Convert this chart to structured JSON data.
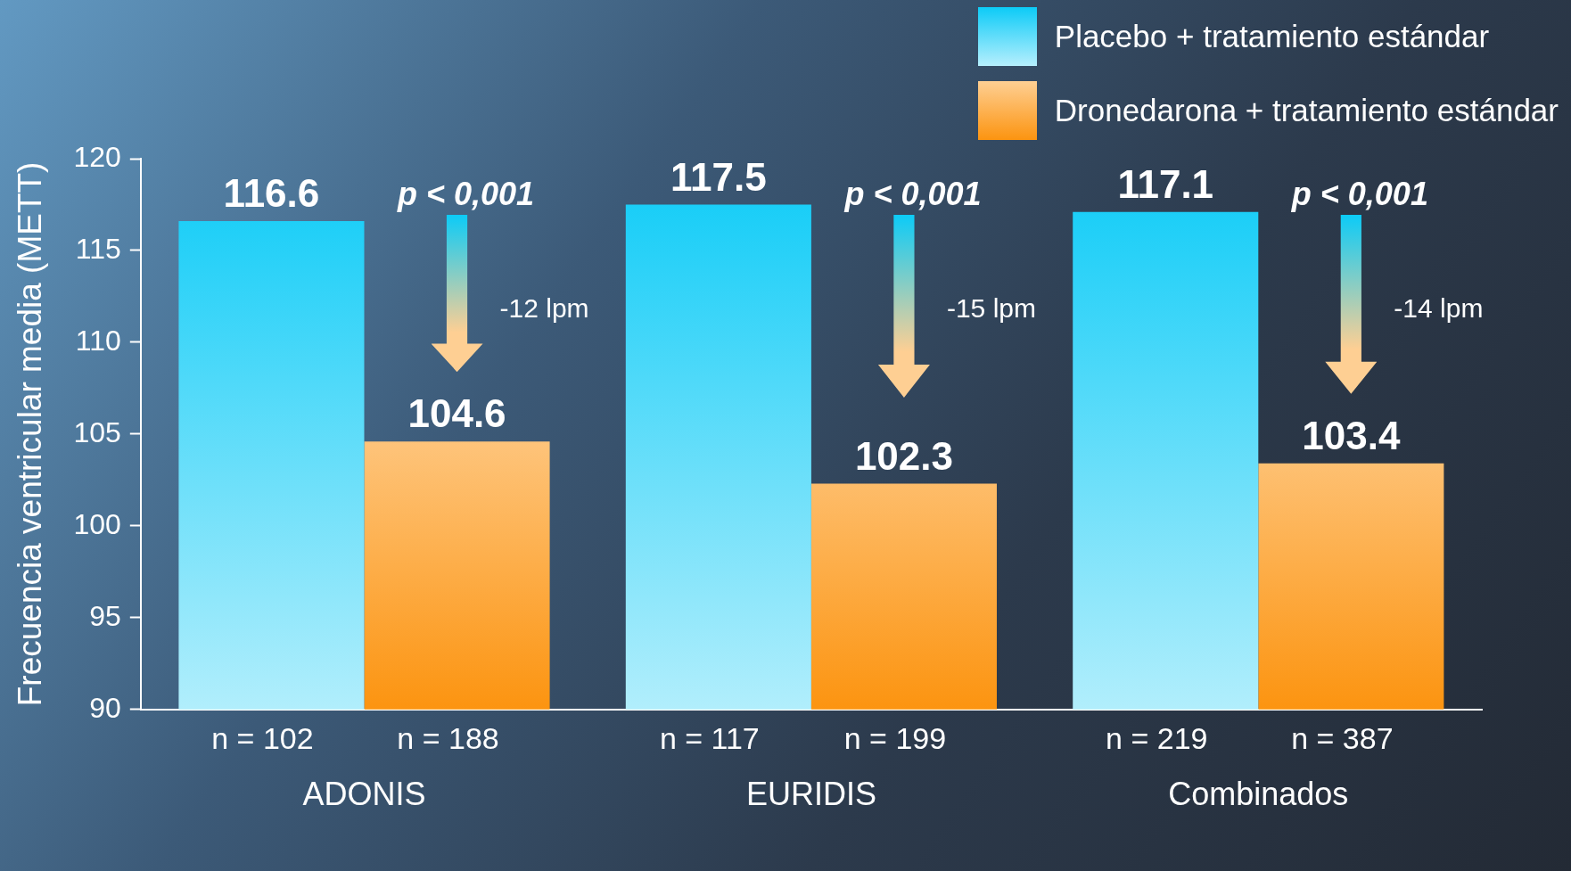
{
  "chart_data": {
    "type": "bar",
    "categories": [
      "ADONIS",
      "EURIDIS",
      "Combinados"
    ],
    "series": [
      {
        "name": "Placebo + tratamiento estándar",
        "color": "#0ccbf7",
        "values": [
          116.6,
          117.5,
          117.1
        ]
      },
      {
        "name": "Dronedarona + tratamiento estándar",
        "color": "#fc9410",
        "values": [
          104.6,
          102.3,
          103.4
        ]
      }
    ],
    "ylabel": "Frecuencia ventricular media (METT)",
    "ylim": [
      90,
      120
    ],
    "yticks": [
      90,
      95,
      100,
      105,
      110,
      115,
      120
    ],
    "data_labels": true,
    "legend": "top right",
    "grid": false,
    "annotations": [
      "p < 0,001",
      "p < 0,001",
      "p < 0,001",
      "-12 lpm",
      "-15 lpm",
      "-14 lpm",
      "n = 102",
      "n = 188",
      "n = 117",
      "n = 199",
      "n = 219",
      "n = 387"
    ]
  }
}
